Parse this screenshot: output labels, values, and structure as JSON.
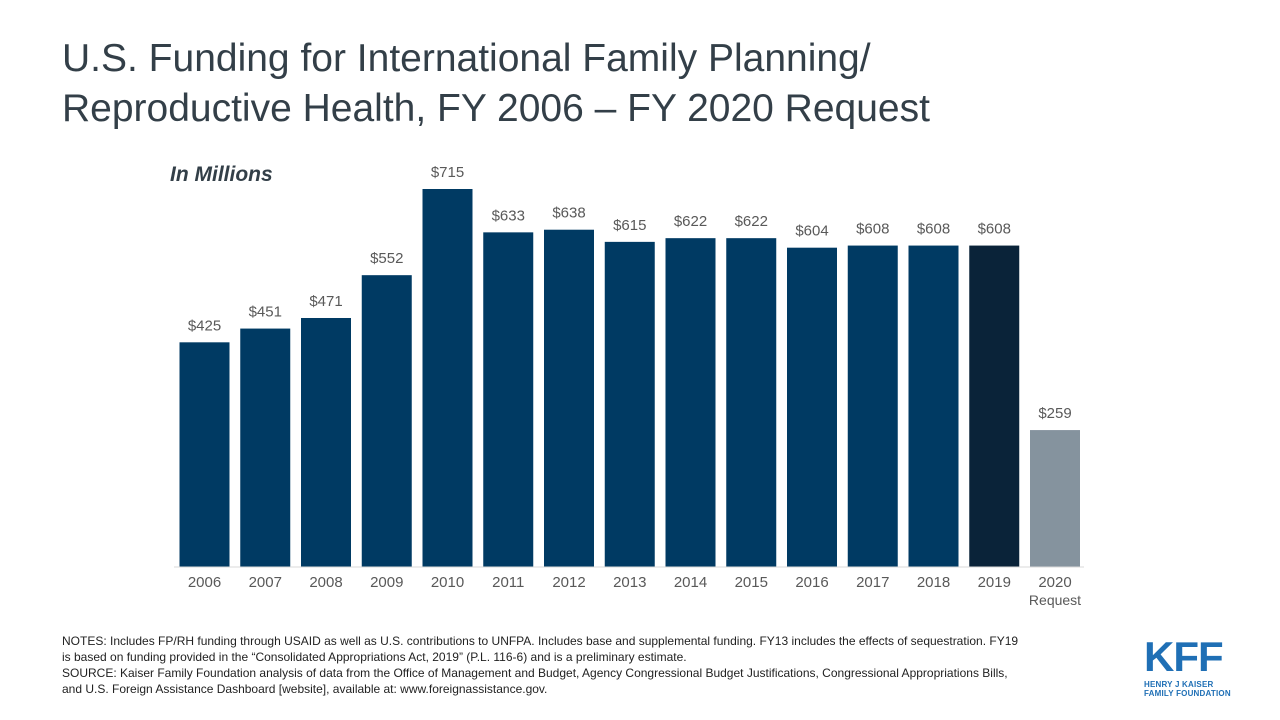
{
  "chart_data": {
    "type": "bar",
    "title": "U.S. Funding for International Family Planning/\nReproductive Health, FY 2006 – FY 2020 Request",
    "unit_label": "In Millions",
    "categories": [
      "2006",
      "2007",
      "2008",
      "2009",
      "2010",
      "2011",
      "2012",
      "2013",
      "2014",
      "2015",
      "2016",
      "2017",
      "2018",
      "2019",
      "2020\nRequest"
    ],
    "values": [
      425,
      451,
      471,
      552,
      715,
      633,
      638,
      615,
      622,
      622,
      604,
      608,
      608,
      608,
      259
    ],
    "data_labels": [
      "$425",
      "$451",
      "$471",
      "$552",
      "$715",
      "$633",
      "$638",
      "$615",
      "$622",
      "$622",
      "$604",
      "$608",
      "$608",
      "$608",
      "$259"
    ],
    "bar_colors": [
      "#003a63",
      "#003a63",
      "#003a63",
      "#003a63",
      "#003a63",
      "#003a63",
      "#003a63",
      "#003a63",
      "#003a63",
      "#003a63",
      "#003a63",
      "#003a63",
      "#003a63",
      "#0a2339",
      "#85939e"
    ],
    "ylim": [
      0,
      715
    ],
    "grid": false,
    "legend": "none"
  },
  "notes": [
    "NOTES: Includes FP/RH funding through USAID as well as U.S. contributions to UNFPA. Includes base and supplemental funding. FY13 includes the effects of sequestration. FY19 is based on funding provided in the “Consolidated Appropriations Act, 2019” (P.L. 116-6) and is a preliminary estimate.",
    "SOURCE: Kaiser Family Foundation analysis of data from the Office of Management and Budget, Agency Congressional Budget Justifications, Congressional Appropriations Bills, and U.S. Foreign Assistance Dashboard [website], available at: www.foreignassistance.gov."
  ],
  "logo": {
    "mark": "KFF",
    "subtitle": "HENRY J KAISER\nFAMILY FOUNDATION",
    "color": "#1f6fb5"
  },
  "colors": {
    "title_text": "#333f48",
    "label_text": "#595959",
    "axis_line": "#d9d9d9"
  }
}
